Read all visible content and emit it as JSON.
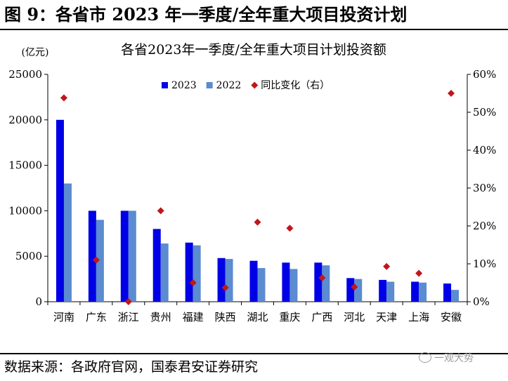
{
  "figure_title": "图 9：各省市 2023 年一季度/全年重大项目投资计划",
  "source_note": "数据来源：各政府官网，国泰君安证券研究",
  "watermark": "一观大势",
  "watermark_icon": "wechat-icon",
  "chart_data": {
    "type": "bar",
    "title": "各省2023年一季度/全年重大项目计划投资额",
    "ylabel": "(亿元)",
    "ylabel_right": "",
    "categories": [
      "河南",
      "广东",
      "浙江",
      "贵州",
      "福建",
      "陕西",
      "湖北",
      "重庆",
      "广西",
      "河北",
      "天津",
      "上海",
      "安徽"
    ],
    "ylim": [
      0,
      25000
    ],
    "yticks": [
      "0",
      "5000",
      "10000",
      "15000",
      "20000",
      "25000"
    ],
    "y2lim": [
      0,
      0.6
    ],
    "y2ticks": [
      "0%",
      "10%",
      "20%",
      "30%",
      "40%",
      "50%",
      "60%"
    ],
    "legend_position": "top-center",
    "grid": false,
    "series": [
      {
        "name": "2023",
        "kind": "bar",
        "color": "#0000e6",
        "values": [
          20000,
          10000,
          10000,
          8000,
          6500,
          4800,
          4500,
          4300,
          4300,
          2600,
          2400,
          2200,
          2000
        ]
      },
      {
        "name": "2022",
        "kind": "bar",
        "color": "#5b8bd0",
        "values": [
          13000,
          9000,
          10000,
          6400,
          6200,
          4700,
          3700,
          3600,
          4000,
          2500,
          2200,
          2100,
          1300
        ]
      },
      {
        "name": "同比变化（右）",
        "kind": "scatter",
        "axis": "right",
        "color": "#c0161c",
        "values": [
          0.538,
          0.11,
          0.0,
          0.24,
          0.05,
          0.037,
          0.21,
          0.194,
          0.063,
          0.039,
          0.093,
          0.075,
          0.55
        ]
      }
    ]
  }
}
